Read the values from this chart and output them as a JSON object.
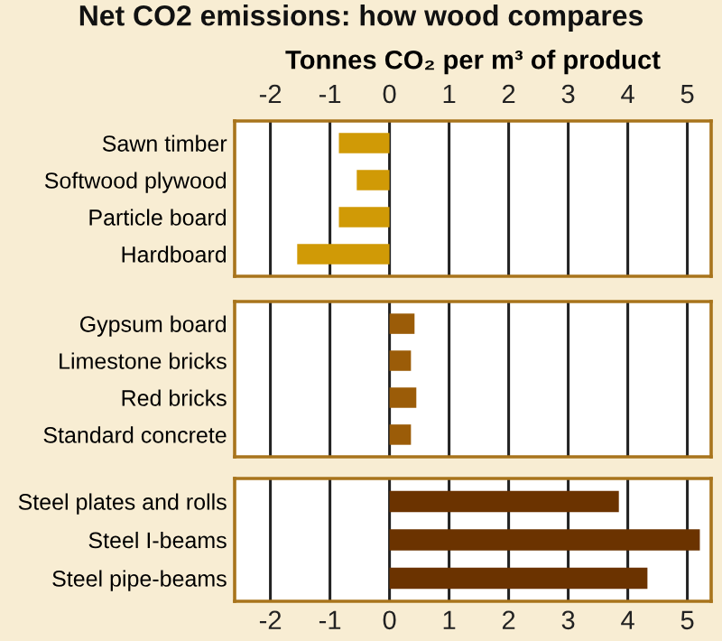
{
  "chart_data": [
    {
      "type": "bar",
      "orientation": "horizontal",
      "title": "Net CO2 emissions: how wood compares",
      "x2label": "Tonnes CO₂ per m³ of product",
      "categories": [
        "Sawn timber",
        "Softwood plywood",
        "Particle board",
        "Hardboard"
      ],
      "series": [
        {
          "values": [
            -0.85,
            -0.55,
            -0.85,
            -1.55
          ],
          "color": "#d09a06",
          "axis": "x2"
        }
      ],
      "x2lim": [
        -2.6,
        5.4
      ],
      "x2ticks": [
        -2,
        -1,
        0,
        1,
        2,
        3,
        4,
        5
      ],
      "tick_labels": "y",
      "grid": "x",
      "legend": false
    },
    {
      "type": "bar",
      "orientation": "horizontal",
      "categories": [
        "Gypsum board",
        "Limestone bricks",
        "Red bricks",
        "Standard concrete"
      ],
      "values": [
        0.42,
        0.36,
        0.45,
        0.36
      ],
      "color": "#9b5c08",
      "xlim": [
        -2.6,
        5.4
      ],
      "xticks": [
        -2,
        -1,
        0,
        1,
        2,
        3,
        4,
        5
      ],
      "tick_labels": "y",
      "grid": "x",
      "legend": false
    },
    {
      "type": "bar",
      "orientation": "horizontal",
      "categories": [
        "Steel plates and rolls",
        "Steel I-beams",
        "Steel pipe-beams"
      ],
      "values": [
        3.85,
        5.21,
        4.33
      ],
      "color": "#6b3300",
      "xlim": [
        -2.6,
        5.4
      ],
      "xticks": [
        -2,
        -1,
        0,
        1,
        2,
        3,
        4,
        5
      ],
      "grid": "x",
      "legend": false
    }
  ]
}
